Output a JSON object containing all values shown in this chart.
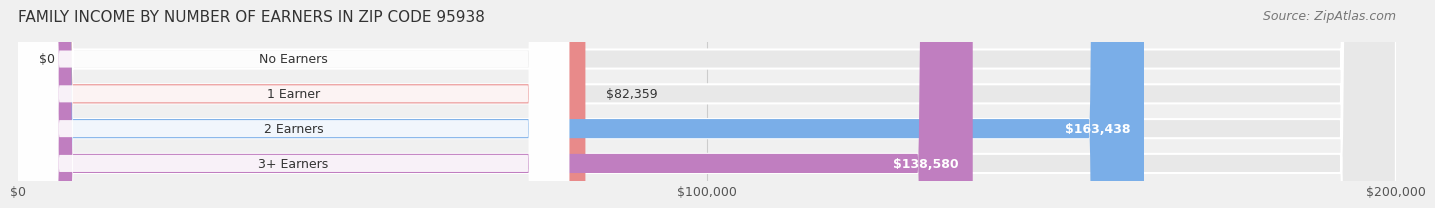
{
  "title": "FAMILY INCOME BY NUMBER OF EARNERS IN ZIP CODE 95938",
  "source": "Source: ZipAtlas.com",
  "categories": [
    "No Earners",
    "1 Earner",
    "2 Earners",
    "3+ Earners"
  ],
  "values": [
    0,
    82359,
    163438,
    138580
  ],
  "labels": [
    "$0",
    "$82,359",
    "$163,438",
    "$138,580"
  ],
  "bar_colors": [
    "#f5c891",
    "#e88a8a",
    "#7aaee8",
    "#c07ec0"
  ],
  "bar_colors_light": [
    "#fde9c8",
    "#f5c0c0",
    "#b0ccf0",
    "#dbaad8"
  ],
  "background_color": "#f0f0f0",
  "bar_bg_color": "#e8e8e8",
  "xlim": [
    0,
    200000
  ],
  "xticks": [
    0,
    100000,
    200000
  ],
  "xtick_labels": [
    "$0",
    "$100,000",
    "$200,000"
  ],
  "label_colors_inside": [
    "#555555",
    "#555555",
    "#ffffff",
    "#ffffff"
  ],
  "title_fontsize": 11,
  "source_fontsize": 9,
  "label_fontsize": 9,
  "tick_fontsize": 9
}
